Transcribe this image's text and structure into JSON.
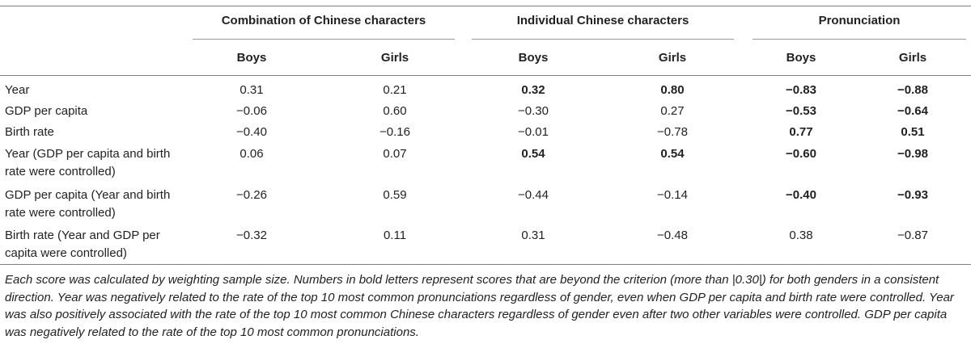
{
  "table": {
    "group_headers": [
      "Combination of Chinese characters",
      "Individual Chinese characters",
      "Pronunciation"
    ],
    "sub_headers": [
      "Boys",
      "Girls",
      "Boys",
      "Girls",
      "Boys",
      "Girls"
    ],
    "rows": [
      {
        "label": "Year",
        "values": [
          "0.31",
          "0.21",
          "0.32",
          "0.80",
          "−0.83",
          "−0.88"
        ],
        "bold": [
          false,
          false,
          true,
          true,
          true,
          true
        ]
      },
      {
        "label": "GDP per capita",
        "values": [
          "−0.06",
          "0.60",
          "−0.30",
          "0.27",
          "−0.53",
          "−0.64"
        ],
        "bold": [
          false,
          false,
          false,
          false,
          true,
          true
        ]
      },
      {
        "label": "Birth rate",
        "values": [
          "−0.40",
          "−0.16",
          "−0.01",
          "−0.78",
          "0.77",
          "0.51"
        ],
        "bold": [
          false,
          false,
          false,
          false,
          true,
          true
        ]
      },
      {
        "label": "Year (GDP per capita and birth rate were controlled)",
        "values": [
          "0.06",
          "0.07",
          "0.54",
          "0.54",
          "−0.60",
          "−0.98"
        ],
        "bold": [
          false,
          false,
          true,
          true,
          true,
          true
        ]
      },
      {
        "label": "GDP per capita (Year and birth rate were controlled)",
        "values": [
          "−0.26",
          "0.59",
          "−0.44",
          "−0.14",
          "−0.40",
          "−0.93"
        ],
        "bold": [
          false,
          false,
          false,
          false,
          true,
          true
        ]
      },
      {
        "label": "Birth rate (Year and GDP per capita were controlled)",
        "values": [
          "−0.32",
          "0.11",
          "0.31",
          "−0.48",
          "0.38",
          "−0.87"
        ],
        "bold": [
          false,
          false,
          false,
          false,
          false,
          false
        ]
      }
    ],
    "footnote": "Each score was calculated by weighting sample size. Numbers in bold letters represent scores that are beyond the criterion (more than |0.30|) for both genders in a consistent direction. Year was negatively related to the rate of the top 10 most common pronunciations regardless of gender, even when GDP per capita and birth rate were controlled. Year was also positively associated with the rate of the top 10 most common Chinese characters regardless of gender even after two other variables were controlled. GDP per capita was negatively related to the rate of the top 10 most common pronunciations."
  }
}
